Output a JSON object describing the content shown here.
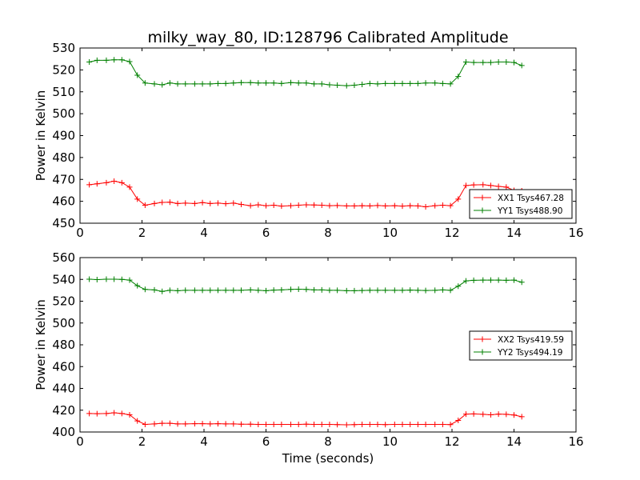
{
  "figure": {
    "title": "milky_way_80, ID:128796 Calibrated Amplitude"
  },
  "chart_data": [
    {
      "type": "line",
      "xlabel": "",
      "ylabel": "Power in Kelvin",
      "xlim": [
        0,
        16
      ],
      "ylim": [
        450,
        530
      ],
      "xticks": [
        0,
        2,
        4,
        6,
        8,
        10,
        12,
        14,
        16
      ],
      "yticks": [
        450,
        460,
        470,
        480,
        490,
        500,
        510,
        520,
        530
      ],
      "grid": false,
      "legend_position": "lower-right",
      "x": [
        0.3,
        0.55,
        0.85,
        1.1,
        1.35,
        1.6,
        1.85,
        2.1,
        2.4,
        2.65,
        2.9,
        3.15,
        3.4,
        3.7,
        3.95,
        4.2,
        4.45,
        4.7,
        4.95,
        5.2,
        5.5,
        5.75,
        6.0,
        6.25,
        6.5,
        6.8,
        7.05,
        7.3,
        7.55,
        7.8,
        8.05,
        8.3,
        8.6,
        8.85,
        9.1,
        9.35,
        9.6,
        9.85,
        10.15,
        10.4,
        10.65,
        10.9,
        11.15,
        11.45,
        11.7,
        11.95,
        12.2,
        12.45,
        12.7,
        13.0,
        13.25,
        13.5,
        13.75,
        14.0,
        14.25
      ],
      "series": [
        {
          "name": "XX1 Tsys467.28",
          "color": "#ff0000",
          "values": [
            467.6,
            468.0,
            468.5,
            469.2,
            468.5,
            466.5,
            461.0,
            458.2,
            459.0,
            459.5,
            459.6,
            459.0,
            459.2,
            459.0,
            459.4,
            459.0,
            459.2,
            458.9,
            459.2,
            458.6,
            458.0,
            458.4,
            458.0,
            458.2,
            457.8,
            458.0,
            458.2,
            458.4,
            458.3,
            458.2,
            458.0,
            458.1,
            457.9,
            457.9,
            458.0,
            457.9,
            458.1,
            457.9,
            458.0,
            457.8,
            458.0,
            457.9,
            457.5,
            458.0,
            458.2,
            458.0,
            461.0,
            467.2,
            467.5,
            467.6,
            467.2,
            466.8,
            466.5,
            465.0,
            464.8
          ]
        },
        {
          "name": "YY1 Tsys488.90",
          "color": "#008000",
          "values": [
            523.6,
            524.4,
            524.4,
            524.6,
            524.6,
            523.8,
            517.6,
            514.0,
            513.6,
            513.2,
            514.0,
            513.6,
            513.6,
            513.6,
            513.6,
            513.6,
            513.8,
            513.8,
            514.0,
            514.2,
            514.2,
            514.0,
            514.0,
            514.0,
            513.8,
            514.2,
            514.0,
            514.0,
            513.6,
            513.6,
            513.2,
            513.0,
            512.8,
            513.0,
            513.4,
            513.8,
            513.6,
            513.8,
            513.8,
            513.8,
            513.8,
            513.8,
            514.0,
            514.0,
            513.8,
            513.6,
            517.0,
            523.6,
            523.4,
            523.4,
            523.4,
            523.6,
            523.6,
            523.4,
            522.0
          ]
        }
      ]
    },
    {
      "type": "line",
      "xlabel": "Time (seconds)",
      "ylabel": "Power in Kelvin",
      "xlim": [
        0,
        16
      ],
      "ylim": [
        400,
        560
      ],
      "xticks": [
        0,
        2,
        4,
        6,
        8,
        10,
        12,
        14,
        16
      ],
      "yticks": [
        400,
        420,
        440,
        460,
        480,
        500,
        520,
        540,
        560
      ],
      "grid": false,
      "legend_position": "center-right",
      "x": [
        0.3,
        0.55,
        0.85,
        1.1,
        1.35,
        1.6,
        1.85,
        2.1,
        2.4,
        2.65,
        2.9,
        3.15,
        3.4,
        3.7,
        3.95,
        4.2,
        4.45,
        4.7,
        4.95,
        5.2,
        5.5,
        5.75,
        6.0,
        6.25,
        6.5,
        6.8,
        7.05,
        7.3,
        7.55,
        7.8,
        8.05,
        8.3,
        8.6,
        8.85,
        9.1,
        9.35,
        9.6,
        9.85,
        10.15,
        10.4,
        10.65,
        10.9,
        11.15,
        11.45,
        11.7,
        11.95,
        12.2,
        12.45,
        12.7,
        13.0,
        13.25,
        13.5,
        13.75,
        14.0,
        14.25
      ],
      "series": [
        {
          "name": "XX2 Tsys419.59",
          "color": "#ff0000",
          "values": [
            417.0,
            416.8,
            417.0,
            417.6,
            417.0,
            415.8,
            410.2,
            407.0,
            407.4,
            408.0,
            408.0,
            407.4,
            407.4,
            407.6,
            407.6,
            407.4,
            407.6,
            407.4,
            407.4,
            407.2,
            407.2,
            407.0,
            407.0,
            407.0,
            407.0,
            407.0,
            407.0,
            407.2,
            407.0,
            407.0,
            407.0,
            406.8,
            406.6,
            406.8,
            407.0,
            407.0,
            407.0,
            406.8,
            407.0,
            407.0,
            407.0,
            407.0,
            407.0,
            407.0,
            407.0,
            406.8,
            410.6,
            416.4,
            416.6,
            416.2,
            415.8,
            416.4,
            416.2,
            415.6,
            414.0
          ]
        },
        {
          "name": "YY2 Tsys494.19",
          "color": "#008000",
          "values": [
            540.2,
            539.8,
            540.2,
            540.2,
            540.0,
            539.4,
            534.2,
            530.8,
            530.4,
            529.0,
            530.0,
            529.6,
            530.0,
            530.0,
            530.0,
            530.0,
            530.0,
            530.0,
            530.0,
            530.0,
            530.4,
            530.0,
            529.6,
            530.2,
            530.4,
            530.8,
            531.0,
            530.8,
            530.4,
            530.4,
            530.0,
            530.0,
            529.6,
            529.6,
            529.8,
            530.0,
            530.0,
            530.0,
            530.0,
            530.0,
            530.2,
            530.0,
            529.8,
            530.0,
            530.4,
            530.0,
            533.8,
            538.6,
            539.2,
            539.4,
            539.4,
            539.4,
            539.2,
            539.4,
            537.4
          ]
        }
      ]
    }
  ]
}
